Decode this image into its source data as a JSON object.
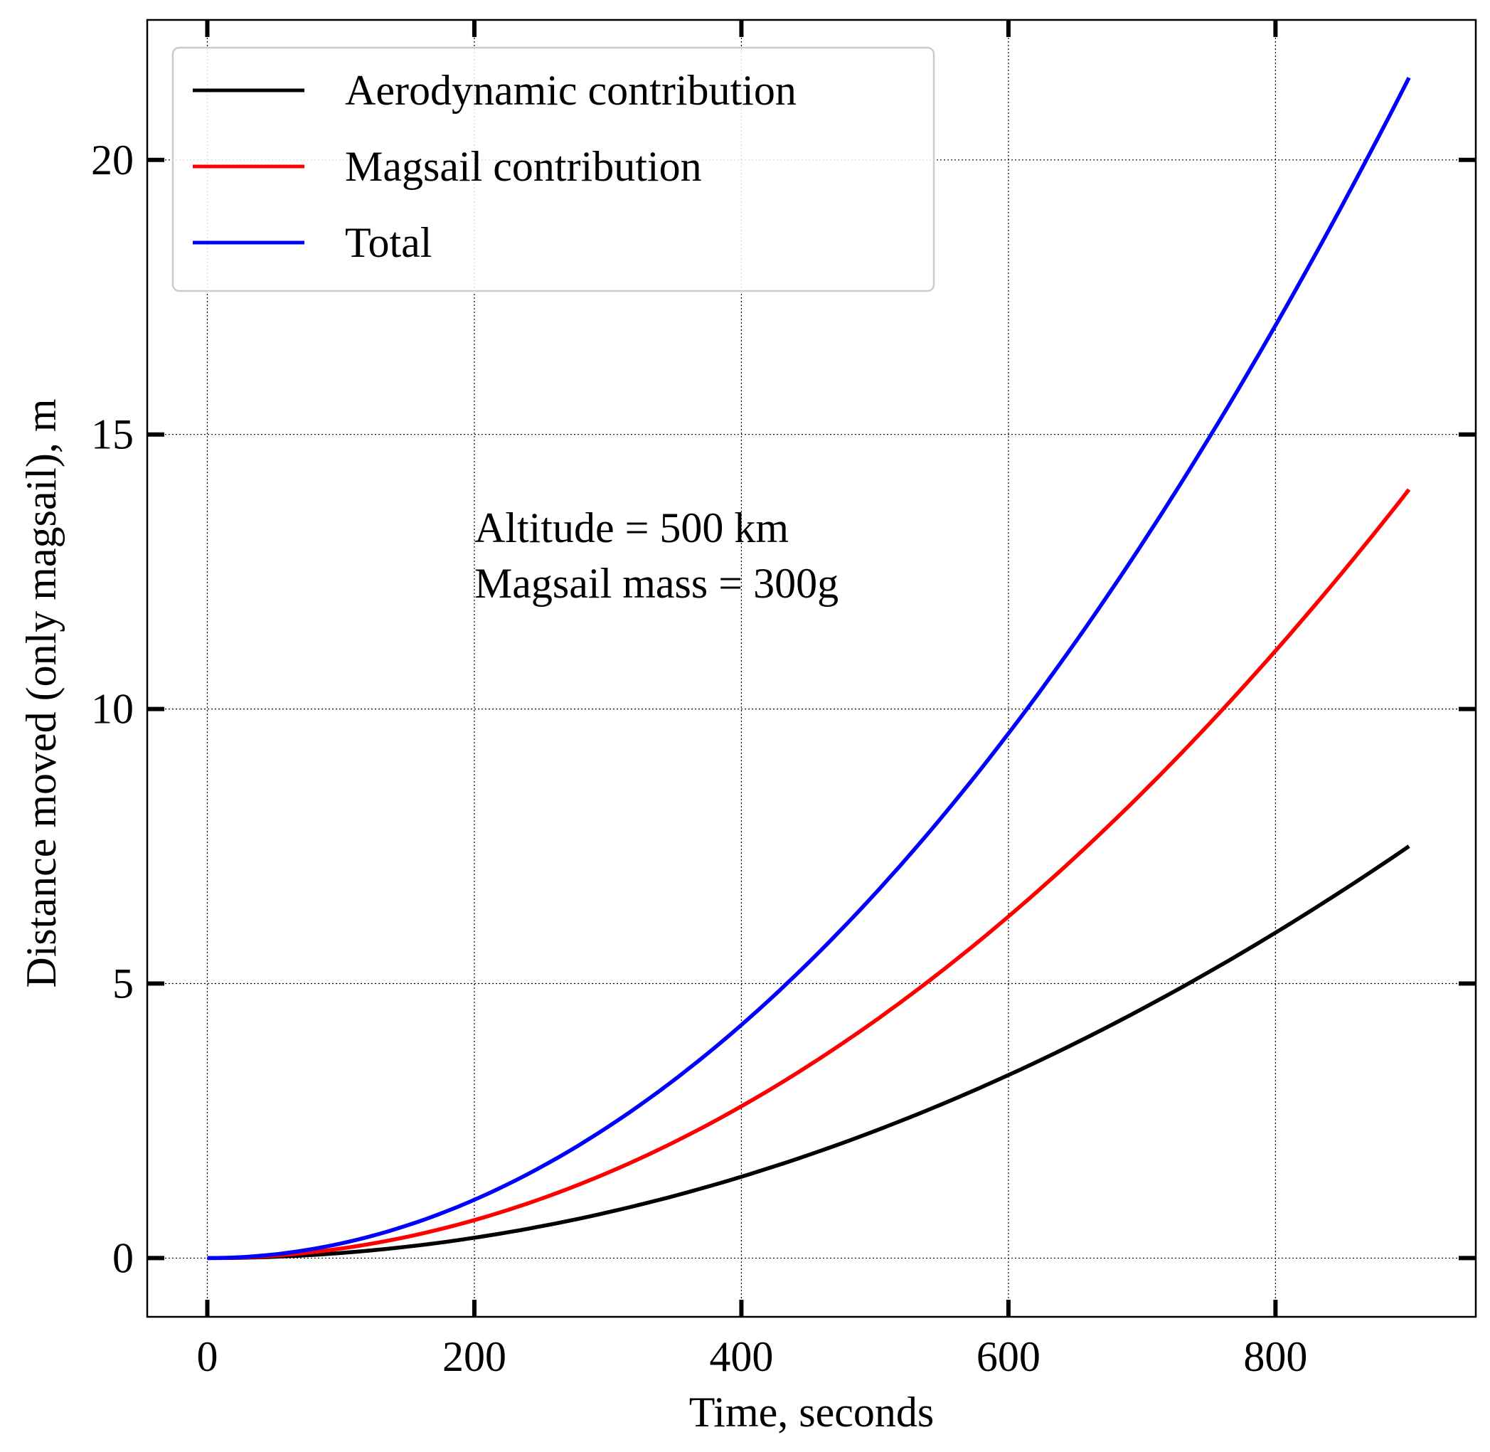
{
  "chart_data": {
    "type": "line",
    "xlabel": "Time, seconds",
    "ylabel": "Distance moved (only magsail), m",
    "xlim": [
      -45,
      950
    ],
    "ylim": [
      -1.07,
      22.55
    ],
    "xticks": [
      0,
      200,
      400,
      600,
      800
    ],
    "yticks": [
      0,
      5,
      10,
      15,
      20
    ],
    "grid": true,
    "legend_position": "top-left",
    "annotation": [
      "Altitude = 500 km",
      "Magsail mass = 300g"
    ],
    "annotation_anchor": {
      "x": 200,
      "y": 13.1
    },
    "series": [
      {
        "name": "Aerodynamic contribution",
        "color": "#000000",
        "x": [
          0,
          900
        ],
        "coeff": 9.26e-06,
        "y_end": 7.5
      },
      {
        "name": "Magsail contribution",
        "color": "#ff0000",
        "x": [
          0,
          900
        ],
        "coeff": 1.728e-05,
        "y_end": 14.0
      },
      {
        "name": "Total",
        "color": "#0000ff",
        "x": [
          0,
          900
        ],
        "coeff": 2.654e-05,
        "y_end": 21.5
      }
    ]
  }
}
